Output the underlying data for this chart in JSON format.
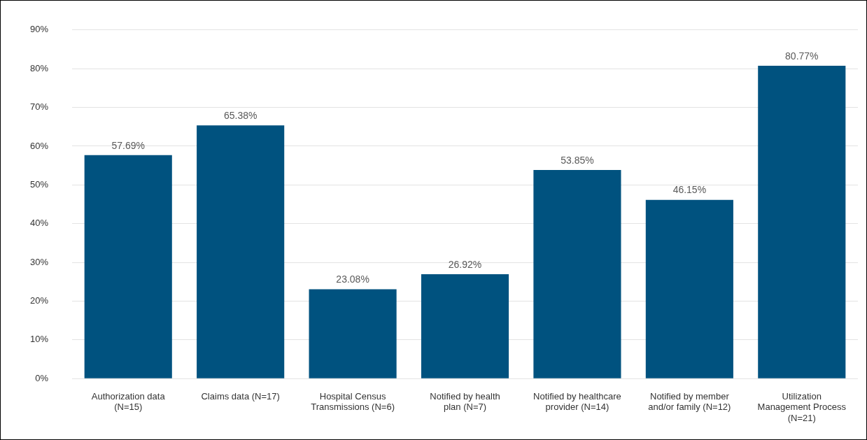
{
  "chart_data": {
    "type": "bar",
    "categories": [
      "Authorization data (N=15)",
      "Claims data (N=17)",
      "Hospital Census Transmissions (N=6)",
      "Notified by health plan (N=7)",
      "Notified by healthcare provider (N=14)",
      "Notified by member and/or family (N=12)",
      "Utilization Management Process (N=21)"
    ],
    "values": [
      57.69,
      65.38,
      23.08,
      26.92,
      53.85,
      46.15,
      80.77
    ],
    "value_labels": [
      "57.69%",
      "65.38%",
      "23.08%",
      "26.92%",
      "53.85%",
      "46.15%",
      "80.77%"
    ],
    "color": "#00527f",
    "ylim": [
      0,
      90
    ],
    "yticks": [
      {
        "value": 0,
        "label": "0%"
      },
      {
        "value": 10,
        "label": "10%"
      },
      {
        "value": 20,
        "label": "20%"
      },
      {
        "value": 30,
        "label": "30%"
      },
      {
        "value": 40,
        "label": "40%"
      },
      {
        "value": 50,
        "label": "50%"
      },
      {
        "value": 60,
        "label": "60%"
      },
      {
        "value": 70,
        "label": "70%"
      },
      {
        "value": 80,
        "label": "80%"
      },
      {
        "value": 90,
        "label": "90%"
      }
    ],
    "grid": "y",
    "legend": false
  }
}
